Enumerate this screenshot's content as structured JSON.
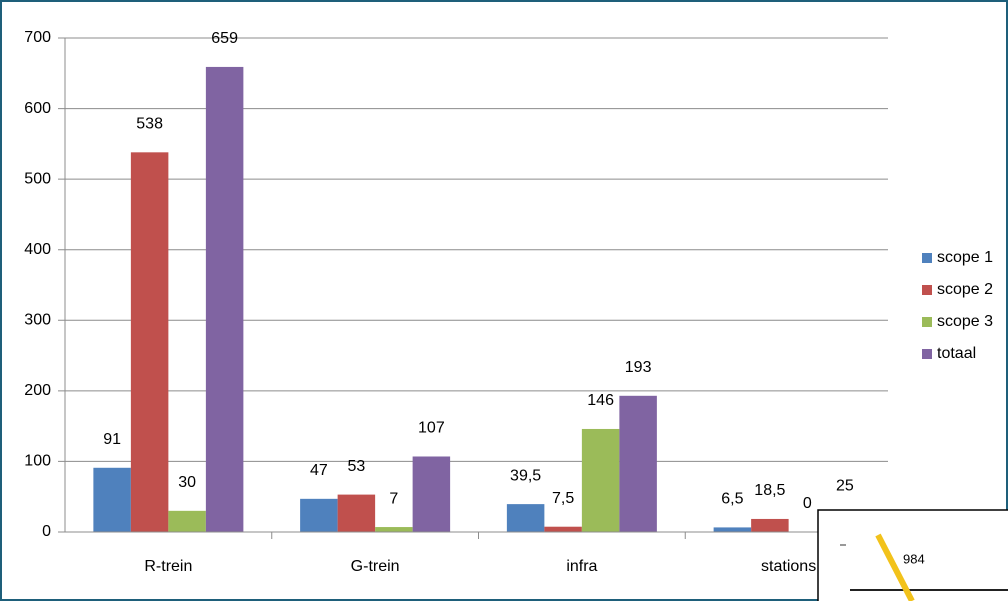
{
  "chart_data": {
    "type": "bar",
    "categories": [
      "R-trein",
      "G-trein",
      "infra",
      "stations"
    ],
    "series": [
      {
        "name": "scope 1",
        "color": "#4f81bd",
        "values": [
          91,
          47,
          39.5,
          6.5
        ],
        "value_labels": [
          "91",
          "47",
          "39,5",
          "6,5"
        ]
      },
      {
        "name": "scope 2",
        "color": "#c0504d",
        "values": [
          538,
          53,
          7.5,
          18.5
        ],
        "value_labels": [
          "538",
          "53",
          "7,5",
          "18,5"
        ]
      },
      {
        "name": "scope 3",
        "color": "#9bbb59",
        "values": [
          30,
          7,
          146,
          0
        ]
      },
      {
        "name": "totaal",
        "color": "#8064a2",
        "values": [
          659,
          107,
          193,
          25
        ]
      }
    ],
    "ylim": [
      0,
      700
    ],
    "yticks": [
      0,
      100,
      200,
      300,
      400,
      500,
      600,
      700
    ],
    "grid": true,
    "legend": "right"
  },
  "inset_label": "984"
}
